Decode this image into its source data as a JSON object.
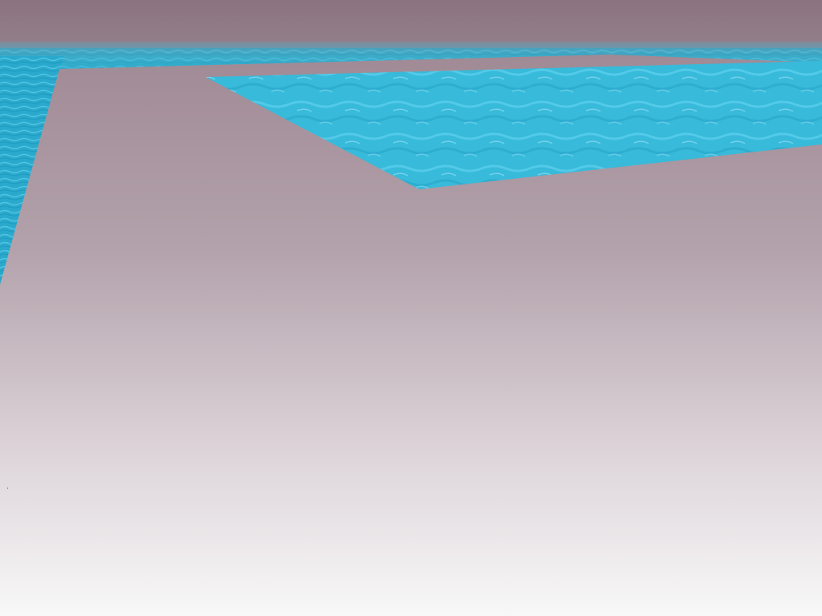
{
  "scene": {
    "type": "3d-game-viewport",
    "hud": {},
    "colors": {
      "sky_top": "#8b7380",
      "sky_bottom": "#93808b",
      "ground_far": "#a4909a",
      "ground_near": "#f7f7f7",
      "water_dark": "#22a9cc",
      "water_light": "#45c6e6",
      "water_highlight": "#8fdff2",
      "horizon_water": "#2fb2d0"
    },
    "objects": [
      {
        "name": "sky",
        "kind": "fog-sky"
      },
      {
        "name": "distant-water",
        "kind": "water-plane"
      },
      {
        "name": "ground-platform",
        "kind": "stone-ground"
      },
      {
        "name": "left-water-strip",
        "kind": "water-plane"
      },
      {
        "name": "pool",
        "kind": "water-plane"
      }
    ]
  }
}
